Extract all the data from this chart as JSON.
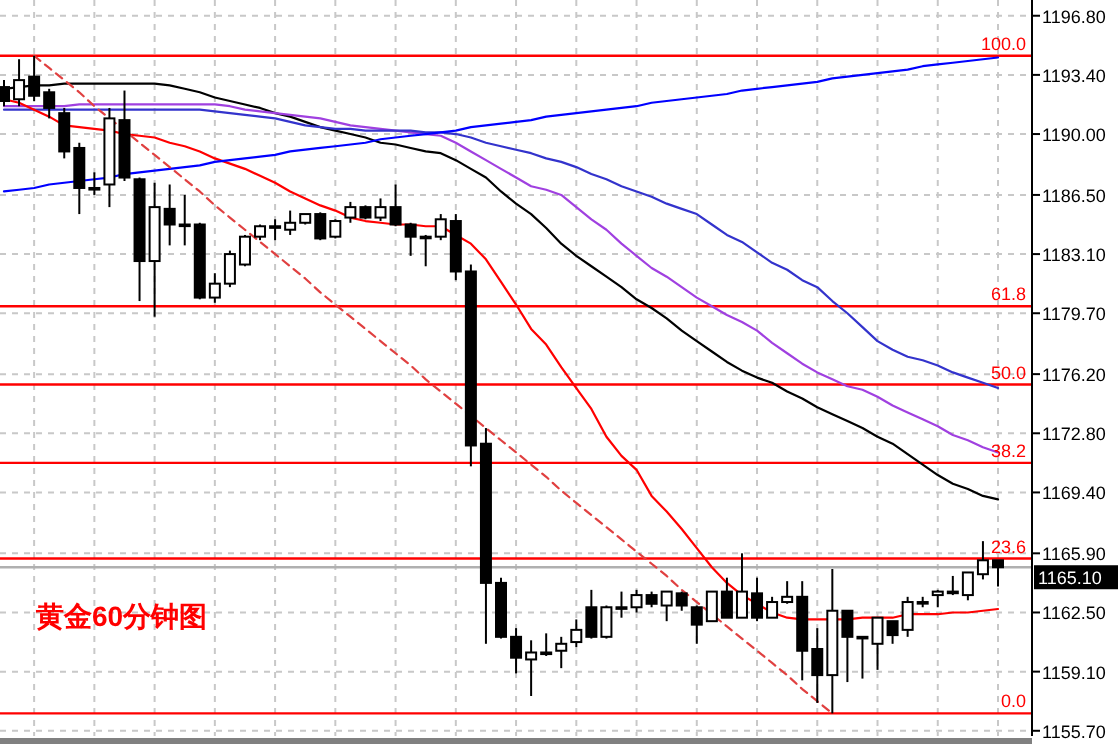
{
  "chart_data": {
    "type": "candlestick",
    "title": "黄金60分钟图",
    "categories": [
      null,
      null,
      null,
      null,
      null,
      null,
      null,
      null,
      null,
      null,
      null,
      null,
      null,
      null,
      null,
      null,
      null,
      null,
      null,
      null,
      null,
      null,
      null,
      null,
      null,
      null,
      null,
      null,
      null,
      null,
      null,
      null,
      null,
      null,
      null,
      null,
      null,
      null,
      null,
      null,
      null,
      null,
      null,
      null,
      null,
      null,
      null,
      null,
      null,
      null,
      null,
      null,
      null,
      null,
      null,
      null,
      null,
      null,
      null,
      null,
      null,
      null,
      null,
      null,
      null,
      null,
      null
    ],
    "ohlc": [
      [
        1192.7,
        1193.1,
        1191.6,
        1191.9
      ],
      [
        1192.0,
        1194.3,
        1191.6,
        1193.1
      ],
      [
        1193.3,
        1194.5,
        1191.9,
        1192.2
      ],
      [
        1192.4,
        1192.6,
        1190.9,
        1191.5
      ],
      [
        1191.2,
        1191.5,
        1188.6,
        1189.0
      ],
      [
        1189.2,
        1189.5,
        1185.4,
        1186.9
      ],
      [
        1186.9,
        1187.8,
        1186.5,
        1186.9
      ],
      [
        1187.1,
        1191.5,
        1185.8,
        1190.9
      ],
      [
        1190.8,
        1192.5,
        1187.3,
        1187.5
      ],
      [
        1187.4,
        1187.5,
        1180.4,
        1182.7
      ],
      [
        1182.7,
        1187.2,
        1179.5,
        1185.8
      ],
      [
        1185.7,
        1187.1,
        1183.6,
        1184.8
      ],
      [
        1184.8,
        1186.5,
        1183.6,
        1184.8
      ],
      [
        1184.8,
        1184.9,
        1180.5,
        1180.6
      ],
      [
        1180.6,
        1182.0,
        1180.3,
        1181.4
      ],
      [
        1181.4,
        1183.3,
        1181.2,
        1183.1
      ],
      [
        1182.5,
        1184.2,
        1182.4,
        1184.1
      ],
      [
        1184.1,
        1184.8,
        1183.9,
        1184.7
      ],
      [
        1184.7,
        1185.1,
        1183.9,
        1184.7
      ],
      [
        1184.5,
        1185.6,
        1184.2,
        1184.9
      ],
      [
        1184.9,
        1185.4,
        1184.8,
        1185.4
      ],
      [
        1185.4,
        1185.5,
        1183.9,
        1184.0
      ],
      [
        1184.1,
        1185.1,
        1184.0,
        1185.0
      ],
      [
        1185.2,
        1186.1,
        1184.9,
        1185.8
      ],
      [
        1185.8,
        1185.9,
        1185.1,
        1185.2
      ],
      [
        1185.2,
        1186.3,
        1185.0,
        1185.8
      ],
      [
        1185.8,
        1187.1,
        1184.7,
        1184.8
      ],
      [
        1184.8,
        1184.9,
        1183.0,
        1184.1
      ],
      [
        1184.1,
        1184.2,
        1182.4,
        1184.1
      ],
      [
        1184.1,
        1185.4,
        1183.9,
        1185.1
      ],
      [
        1185.0,
        1185.4,
        1181.6,
        1182.1
      ],
      [
        1182.1,
        1182.5,
        1170.9,
        1172.1
      ],
      [
        1172.2,
        1173.1,
        1160.7,
        1164.2
      ],
      [
        1164.2,
        1164.5,
        1161.0,
        1161.1
      ],
      [
        1161.1,
        1161.6,
        1159.0,
        1159.9
      ],
      [
        1159.8,
        1160.9,
        1157.7,
        1160.2
      ],
      [
        1160.2,
        1161.3,
        1160.0,
        1160.2
      ],
      [
        1160.3,
        1161.1,
        1159.3,
        1160.7
      ],
      [
        1160.8,
        1162.1,
        1160.5,
        1161.5
      ],
      [
        1162.8,
        1163.8,
        1161.0,
        1161.1
      ],
      [
        1161.1,
        1162.9,
        1161.0,
        1162.8
      ],
      [
        1162.8,
        1163.7,
        1162.2,
        1162.8
      ],
      [
        1162.8,
        1163.8,
        1162.5,
        1163.5
      ],
      [
        1163.5,
        1163.7,
        1162.8,
        1163.0
      ],
      [
        1162.9,
        1163.7,
        1162.0,
        1163.7
      ],
      [
        1163.6,
        1163.7,
        1162.6,
        1162.9
      ],
      [
        1162.8,
        1162.9,
        1160.7,
        1161.8
      ],
      [
        1162.0,
        1163.7,
        1162.0,
        1163.7
      ],
      [
        1163.7,
        1164.5,
        1162.2,
        1162.2
      ],
      [
        1162.2,
        1165.9,
        1162.2,
        1163.7
      ],
      [
        1163.6,
        1164.5,
        1162.0,
        1162.2
      ],
      [
        1162.2,
        1163.4,
        1162.2,
        1163.1
      ],
      [
        1163.1,
        1164.3,
        1163.0,
        1163.4
      ],
      [
        1163.4,
        1164.3,
        1158.6,
        1160.3
      ],
      [
        1160.4,
        1161.6,
        1157.3,
        1158.9
      ],
      [
        1158.9,
        1165.0,
        1156.7,
        1162.6
      ],
      [
        1162.6,
        1162.6,
        1158.5,
        1161.1
      ],
      [
        1161.1,
        1161.1,
        1158.7,
        1161.1
      ],
      [
        1160.7,
        1162.2,
        1159.2,
        1162.2
      ],
      [
        1162.0,
        1162.0,
        1160.7,
        1161.2
      ],
      [
        1161.5,
        1163.4,
        1161.1,
        1163.1
      ],
      [
        1163.1,
        1163.4,
        1162.8,
        1163.1
      ],
      [
        1163.5,
        1163.8,
        1162.8,
        1163.7
      ],
      [
        1163.7,
        1164.6,
        1163.5,
        1163.7
      ],
      [
        1163.5,
        1164.8,
        1163.2,
        1164.8
      ],
      [
        1164.7,
        1166.6,
        1164.4,
        1165.5
      ],
      [
        1165.5,
        1165.5,
        1164.0,
        1165.1
      ]
    ],
    "series": [
      {
        "type": "line",
        "color": "#000000",
        "values": [
          1192.6,
          1192.7,
          1192.8,
          1192.8,
          1192.9,
          1192.9,
          1192.9,
          1192.9,
          1192.9,
          1192.9,
          1192.9,
          1192.8,
          1192.6,
          1192.4,
          1192.1,
          1191.9,
          1191.7,
          1191.5,
          1191.2,
          1191.0,
          1190.7,
          1190.4,
          1190.2,
          1190.0,
          1189.8,
          1189.5,
          1189.4,
          1189.2,
          1189.0,
          1188.9,
          1188.5,
          1188.0,
          1187.5,
          1186.7,
          1186.0,
          1185.4,
          1184.6,
          1183.7,
          1183.0,
          1182.4,
          1181.8,
          1181.2,
          1180.5,
          1180.0,
          1179.4,
          1178.7,
          1178.1,
          1177.5,
          1176.9,
          1176.4,
          1176.0,
          1175.7,
          1175.2,
          1174.8,
          1174.3,
          1173.9,
          1173.5,
          1173.1,
          1172.6,
          1172.2,
          1171.6,
          1171.0,
          1170.4,
          1169.9,
          1169.6,
          1169.2,
          1169.0
        ]
      },
      {
        "type": "line",
        "color": "#a040e0",
        "values": [
          1191.6,
          1191.6,
          1191.6,
          1191.6,
          1191.6,
          1191.7,
          1191.7,
          1191.7,
          1191.7,
          1191.7,
          1191.7,
          1191.7,
          1191.7,
          1191.7,
          1191.7,
          1191.6,
          1191.4,
          1191.3,
          1191.2,
          1191.1,
          1191.0,
          1190.9,
          1190.7,
          1190.5,
          1190.4,
          1190.3,
          1190.2,
          1190.1,
          1190.0,
          1189.9,
          1189.5,
          1189.0,
          1188.5,
          1188.0,
          1187.5,
          1187.0,
          1186.8,
          1186.5,
          1185.8,
          1185.1,
          1184.5,
          1183.7,
          1183.0,
          1182.3,
          1181.8,
          1181.2,
          1180.6,
          1180.1,
          1179.6,
          1179.2,
          1178.7,
          1178.0,
          1177.4,
          1176.8,
          1176.3,
          1175.9,
          1175.5,
          1175.3,
          1174.9,
          1174.4,
          1174.0,
          1173.6,
          1173.2,
          1172.7,
          1172.4,
          1172.0,
          1171.7
        ]
      },
      {
        "type": "line",
        "color": "#3333cc",
        "values": [
          1191.4,
          1191.4,
          1191.4,
          1191.4,
          1191.4,
          1191.4,
          1191.4,
          1191.4,
          1191.4,
          1191.4,
          1191.4,
          1191.4,
          1191.4,
          1191.4,
          1191.3,
          1191.2,
          1191.1,
          1191.0,
          1190.9,
          1190.7,
          1190.5,
          1190.4,
          1190.3,
          1190.3,
          1190.2,
          1190.2,
          1190.2,
          1190.2,
          1190.1,
          1190.1,
          1190.0,
          1189.8,
          1189.5,
          1189.3,
          1189.1,
          1188.9,
          1188.6,
          1188.4,
          1188.1,
          1187.7,
          1187.4,
          1187.0,
          1186.7,
          1186.4,
          1186.0,
          1185.7,
          1185.4,
          1184.8,
          1184.2,
          1183.8,
          1183.2,
          1182.6,
          1182.2,
          1181.6,
          1181.2,
          1180.4,
          1179.7,
          1178.9,
          1178.1,
          1177.6,
          1177.2,
          1177.0,
          1176.7,
          1176.3,
          1176.0,
          1175.7,
          1175.4
        ]
      },
      {
        "type": "line",
        "color": "#ff0000",
        "values": [
          1192.0,
          1191.8,
          1191.4,
          1191.0,
          1190.5,
          1190.4,
          1190.3,
          1190.2,
          1190.0,
          1189.9,
          1189.8,
          1189.5,
          1189.3,
          1189.0,
          1188.6,
          1188.3,
          1188.0,
          1187.6,
          1187.2,
          1186.7,
          1186.3,
          1185.9,
          1185.6,
          1185.2,
          1185.0,
          1184.9,
          1184.8,
          1184.8,
          1184.7,
          1184.7,
          1184.2,
          1183.7,
          1182.8,
          1181.5,
          1180.2,
          1178.8,
          1177.9,
          1176.6,
          1175.4,
          1174.2,
          1172.6,
          1171.5,
          1170.7,
          1169.2,
          1168.3,
          1167.3,
          1166.2,
          1165.1,
          1164.2,
          1163.5,
          1163.0,
          1162.5,
          1162.2,
          1162.1,
          1162.1,
          1162.1,
          1162.1,
          1162.2,
          1162.2,
          1162.2,
          1162.4,
          1162.4,
          1162.4,
          1162.5,
          1162.5,
          1162.6,
          1162.7
        ]
      },
      {
        "type": "line",
        "color": "#0000ff",
        "values": [
          1186.7,
          1186.8,
          1186.9,
          1187.1,
          1187.2,
          1187.3,
          1187.4,
          1187.5,
          1187.7,
          1187.8,
          1187.9,
          1188.0,
          1188.1,
          1188.2,
          1188.4,
          1188.5,
          1188.6,
          1188.7,
          1188.8,
          1189.0,
          1189.1,
          1189.2,
          1189.3,
          1189.4,
          1189.5,
          1189.7,
          1189.8,
          1189.9,
          1190.0,
          1190.1,
          1190.2,
          1190.4,
          1190.5,
          1190.6,
          1190.7,
          1190.8,
          1191.0,
          1191.1,
          1191.2,
          1191.3,
          1191.4,
          1191.5,
          1191.6,
          1191.8,
          1191.9,
          1192.0,
          1192.1,
          1192.2,
          1192.3,
          1192.5,
          1192.6,
          1192.7,
          1192.8,
          1192.9,
          1193.0,
          1193.2,
          1193.3,
          1193.4,
          1193.5,
          1193.6,
          1193.7,
          1193.9,
          1194.0,
          1194.1,
          1194.2,
          1194.3,
          1194.4
        ]
      },
      {
        "type": "line",
        "color": "#e04040",
        "line_style": "dashed",
        "values": [
          null,
          null,
          1194.5,
          1193.8,
          1193.1,
          1192.4,
          1191.6,
          1190.9,
          1190.2,
          1189.5,
          1188.8,
          1188.1,
          1187.4,
          1186.7,
          1185.9,
          1185.2,
          1184.5,
          1183.8,
          1183.1,
          1182.4,
          1181.7,
          1180.9,
          1180.2,
          1179.5,
          1178.8,
          1178.1,
          1177.4,
          1176.7,
          1175.9,
          1175.2,
          1174.5,
          1173.8,
          1173.1,
          1172.4,
          1171.7,
          1171.0,
          1170.3,
          1169.5,
          1168.8,
          1168.1,
          1167.4,
          1166.7,
          1166.0,
          1165.3,
          1164.6,
          1163.8,
          1163.1,
          1162.4,
          1161.7,
          1161.0,
          1160.3,
          1159.6,
          1158.9,
          1158.1,
          1157.4,
          1156.7,
          null,
          null,
          null,
          null,
          null,
          null,
          null,
          null,
          null,
          null,
          null
        ]
      }
    ],
    "ylim": [
      1155.4,
      1196.9
    ],
    "yticks": [
      {
        "value": 1196.8,
        "label": "1196.80"
      },
      {
        "value": 1193.4,
        "label": "1193.40"
      },
      {
        "value": 1190.0,
        "label": "1190.00"
      },
      {
        "value": 1186.5,
        "label": "1186.50"
      },
      {
        "value": 1183.1,
        "label": "1183.10"
      },
      {
        "value": 1179.7,
        "label": "1179.70"
      },
      {
        "value": 1176.2,
        "label": "1176.20"
      },
      {
        "value": 1172.8,
        "label": "1172.80"
      },
      {
        "value": 1169.4,
        "label": "1169.40"
      },
      {
        "value": 1165.9,
        "label": "1165.90"
      },
      {
        "value": 1162.5,
        "label": "1162.50"
      },
      {
        "value": 1159.1,
        "label": "1159.10"
      },
      {
        "value": 1155.7,
        "label": "1155.70"
      }
    ],
    "ref_lines": [
      {
        "axis": "y",
        "value": 1194.5,
        "color": "#ff0000"
      },
      {
        "axis": "y",
        "value": 1180.1,
        "color": "#ff0000"
      },
      {
        "axis": "y",
        "value": 1175.6,
        "color": "#ff0000"
      },
      {
        "axis": "y",
        "value": 1171.1,
        "color": "#ff0000"
      },
      {
        "axis": "y",
        "value": 1165.6,
        "color": "#ff0000"
      },
      {
        "axis": "y",
        "value": 1156.7,
        "color": "#ff0000"
      },
      {
        "axis": "y",
        "value": 1165.1,
        "label": "1165.10",
        "color": "#b0b0b0"
      }
    ],
    "grid": true,
    "annotations": [
      {
        "text": "100.0",
        "y": 1194.5
      },
      {
        "text": "61.8",
        "y": 1180.1
      },
      {
        "text": "50.0",
        "y": 1175.6
      },
      {
        "text": "38.2",
        "y": 1171.1
      },
      {
        "text": "23.6",
        "y": 1165.6
      },
      {
        "text": "0.0",
        "y": 1156.7
      }
    ]
  }
}
